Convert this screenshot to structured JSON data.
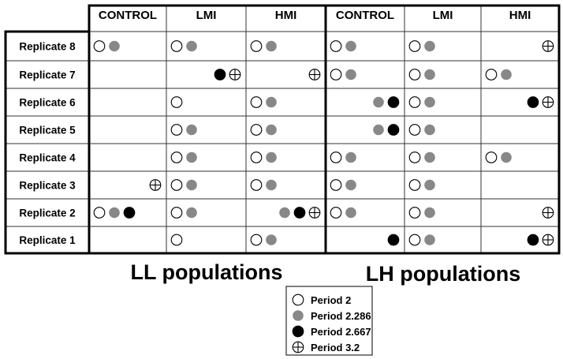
{
  "columns": [
    "CONTROL",
    "LMI",
    "HMI",
    "CONTROL",
    "LMI",
    "HMI"
  ],
  "rows": [
    "Replicate 8",
    "Replicate 7",
    "Replicate 6",
    "Replicate 5",
    "Replicate 4",
    "Replicate 3",
    "Replicate 2",
    "Replicate 1"
  ],
  "population_labels": [
    "LL populations",
    "LH populations"
  ],
  "legend": [
    {
      "key": "p2",
      "label": "Period 2"
    },
    {
      "key": "p2286",
      "label": "Period 2.286"
    },
    {
      "key": "p2667",
      "label": "Period 2.667"
    },
    {
      "key": "p32",
      "label": "Period 3.2"
    }
  ],
  "cells": [
    [
      [
        "p2",
        "p2286"
      ],
      [
        "p2",
        "p2286"
      ],
      [
        "p2",
        "p2286"
      ],
      [
        "p2",
        "p2286"
      ],
      [
        "p2",
        "p2286"
      ],
      [
        "p32"
      ]
    ],
    [
      [],
      [
        "p2667",
        "p32"
      ],
      [
        "p32"
      ],
      [
        "p2",
        "p2286"
      ],
      [
        "p2",
        "p2286"
      ],
      [
        "p2",
        "p2286"
      ]
    ],
    [
      [],
      [
        "p2"
      ],
      [
        "p2",
        "p2286"
      ],
      [
        "p2286",
        "p2667"
      ],
      [
        "p2",
        "p2286"
      ],
      [
        "p2667",
        "p32"
      ]
    ],
    [
      [],
      [
        "p2",
        "p2286"
      ],
      [
        "p2",
        "p2286"
      ],
      [
        "p2286",
        "p2667"
      ],
      [
        "p2",
        "p2286"
      ],
      []
    ],
    [
      [],
      [
        "p2",
        "p2286"
      ],
      [
        "p2",
        "p2286"
      ],
      [
        "p2",
        "p2286"
      ],
      [
        "p2",
        "p2286"
      ],
      [
        "p2",
        "p2286"
      ]
    ],
    [
      [
        "p32"
      ],
      [
        "p2",
        "p2286"
      ],
      [
        "p2",
        "p2286"
      ],
      [
        "p2",
        "p2286"
      ],
      [
        "p2",
        "p2286"
      ],
      []
    ],
    [
      [
        "p2",
        "p2286",
        "p2667"
      ],
      [
        "p2",
        "p2286"
      ],
      [
        "p2286",
        "p2667",
        "p32"
      ],
      [
        "p2",
        "p2286"
      ],
      [
        "p2",
        "p2286"
      ],
      [
        "p32"
      ]
    ],
    [
      [],
      [
        "p2"
      ],
      [
        "p2",
        "p2286"
      ],
      [
        "p2667"
      ],
      [
        "p2",
        "p2286"
      ],
      [
        "p2667",
        "p32"
      ]
    ]
  ],
  "symbol_colors": {
    "p2": "#ffffff",
    "p2286": "#888888",
    "p2667": "#000000",
    "p32": "#ffffff"
  }
}
